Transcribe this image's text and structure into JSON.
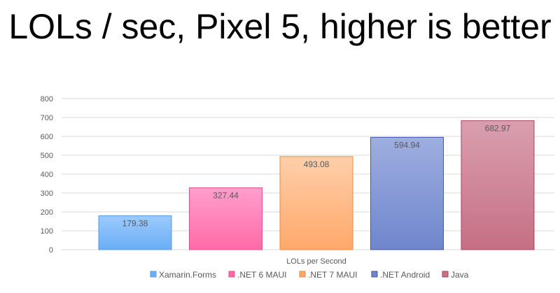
{
  "chart_data": {
    "type": "bar",
    "title": "LOLs / sec, Pixel 5, higher is better",
    "xlabel": "LOLs per Second",
    "ylabel": "",
    "ylim": [
      0,
      800
    ],
    "yticks": [
      "0",
      "100",
      "200",
      "300",
      "400",
      "500",
      "600",
      "700",
      "800"
    ],
    "grid": true,
    "legend_position": "bottom",
    "series": [
      {
        "name": "Xamarin.Forms",
        "value": 179.38,
        "label": "179.38",
        "color_top": "#9ccafc",
        "color_bottom": "#6aaef6",
        "edge": "#5a9ae6"
      },
      {
        "name": ".NET 6 MAUI",
        "value": 327.44,
        "label": "327.44",
        "color_top": "#ff9fcd",
        "color_bottom": "#ff6aa6",
        "edge": "#e0508c"
      },
      {
        "name": ".NET 7 MAUI",
        "value": 493.08,
        "label": "493.08",
        "color_top": "#ffcfaa",
        "color_bottom": "#ffa86a",
        "edge": "#f08a40"
      },
      {
        "name": ".NET Android",
        "value": 594.94,
        "label": "594.94",
        "color_top": "#9eaee0",
        "color_bottom": "#6f86cc",
        "edge": "#3f5aa8"
      },
      {
        "name": "Java",
        "value": 682.97,
        "label": "682.97",
        "color_top": "#d99fae",
        "color_bottom": "#c66f85",
        "edge": "#a8445e"
      }
    ]
  }
}
